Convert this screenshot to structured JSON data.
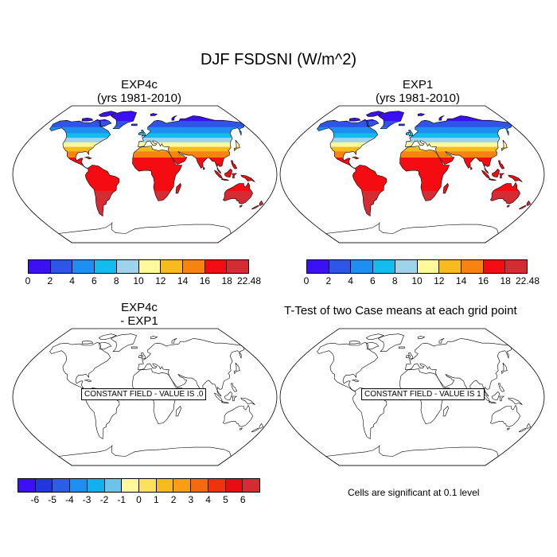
{
  "title": "DJF FSDSNI (W/m^2)",
  "panels": {
    "top_left": {
      "line1": "EXP4c",
      "line2": "(yrs 1981-2010)"
    },
    "top_right": {
      "line1": "EXP1",
      "line2": "(yrs 1981-2010)"
    },
    "bottom_left": {
      "line1": "EXP4c",
      "line2": "- EXP1",
      "constant_field": "CONSTANT FIELD - VALUE IS .0"
    },
    "bottom_right": {
      "title": "T-Test of two Case means at each grid point",
      "constant_field": "CONSTANT FIELD - VALUE IS 1"
    }
  },
  "colorbar_main": {
    "colors": [
      "#3b10f5",
      "#2d55e6",
      "#1f8ef1",
      "#12bdee",
      "#9ed3ec",
      "#fdf99c",
      "#f8bb1f",
      "#f78412",
      "#f40c13",
      "#d42c32"
    ],
    "labels": [
      "0",
      "2",
      "4",
      "6",
      "8",
      "10",
      "12",
      "14",
      "16",
      "18",
      "22.48"
    ]
  },
  "colorbar_diff": {
    "colors": [
      "#3b10f5",
      "#2236e0",
      "#2b5ee6",
      "#1f8ef1",
      "#12b0ee",
      "#6cc3ec",
      "#fdf99c",
      "#fde05e",
      "#f8bb1f",
      "#f89d16",
      "#f46a10",
      "#f0330f",
      "#e60d13",
      "#d42c32"
    ],
    "labels": [
      "-6",
      "-5",
      "-4",
      "-3",
      "-2",
      "-1",
      "0",
      "1",
      "2",
      "3",
      "4",
      "5",
      "6"
    ]
  },
  "significance_note": "Cells are significant at 0.1 level"
}
